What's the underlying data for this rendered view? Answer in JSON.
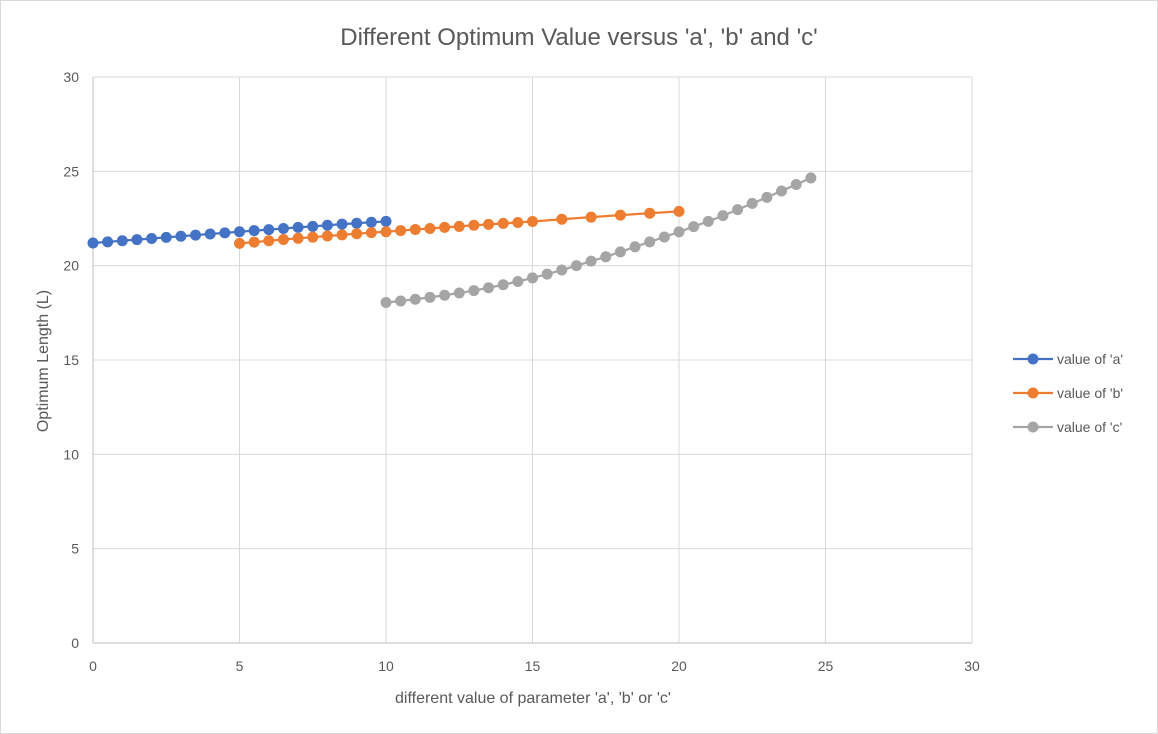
{
  "chart_data": {
    "type": "scatter",
    "title": "Different Optimum Value versus 'a', 'b' and 'c'",
    "xlabel": "different value of  parameter 'a', 'b' or 'c'",
    "ylabel": "Optimum Length (L)",
    "xlim": [
      0,
      30
    ],
    "ylim": [
      0,
      30
    ],
    "xticks": [
      "0",
      "5",
      "10",
      "15",
      "20",
      "25",
      "30"
    ],
    "yticks": [
      "0",
      "5",
      "10",
      "15",
      "20",
      "25",
      "30"
    ],
    "grid": true,
    "legend_position": "right",
    "series": [
      {
        "name": "value of 'a'",
        "color": "#4472c4",
        "x": [
          0,
          0.5,
          1,
          1.5,
          2,
          2.5,
          3,
          3.5,
          4,
          4.5,
          5,
          5.5,
          6,
          6.5,
          7,
          7.5,
          8,
          8.5,
          9,
          9.5,
          10
        ],
        "y": [
          21.2,
          21.26,
          21.32,
          21.38,
          21.44,
          21.5,
          21.56,
          21.62,
          21.68,
          21.74,
          21.8,
          21.86,
          21.91,
          21.97,
          22.03,
          22.08,
          22.14,
          22.2,
          22.25,
          22.3,
          22.35
        ]
      },
      {
        "name": "value of 'b'",
        "color": "#ed7d31",
        "x": [
          5,
          5.5,
          6,
          6.5,
          7,
          7.5,
          8,
          8.5,
          9,
          9.5,
          10,
          10.5,
          11,
          11.5,
          12,
          12.5,
          13,
          13.5,
          14,
          14.5,
          15,
          16,
          17,
          18,
          19,
          20
        ],
        "y": [
          21.18,
          21.25,
          21.32,
          21.39,
          21.45,
          21.51,
          21.57,
          21.63,
          21.69,
          21.75,
          21.8,
          21.86,
          21.92,
          21.97,
          22.03,
          22.08,
          22.14,
          22.19,
          22.24,
          22.29,
          22.34,
          22.46,
          22.57,
          22.68,
          22.78,
          22.88
        ]
      },
      {
        "name": "value of 'c'",
        "color": "#a5a5a5",
        "x": [
          10,
          10.5,
          11,
          11.5,
          12,
          12.5,
          13,
          13.5,
          14,
          14.5,
          15,
          15.5,
          16,
          16.5,
          17,
          17.5,
          18,
          18.5,
          19,
          19.5,
          20,
          20.5,
          21,
          21.5,
          22,
          22.5,
          23,
          23.5,
          24,
          24.5
        ],
        "y": [
          18.05,
          18.13,
          18.22,
          18.32,
          18.43,
          18.55,
          18.68,
          18.83,
          18.99,
          19.16,
          19.35,
          19.55,
          19.77,
          20.0,
          20.24,
          20.47,
          20.73,
          21.0,
          21.26,
          21.52,
          21.79,
          22.07,
          22.35,
          22.65,
          22.97,
          23.3,
          23.62,
          23.96,
          24.3,
          24.65
        ]
      }
    ]
  }
}
